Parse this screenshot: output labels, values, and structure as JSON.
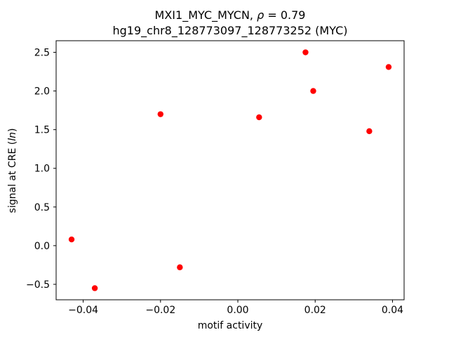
{
  "figure": {
    "background": "#ffffff"
  },
  "chart_data": {
    "type": "scatter",
    "title_line1": {
      "prefix": "MXI1_MYC_MYCN, ",
      "rho": "ρ",
      "suffix": " = 0.79"
    },
    "title_line2": "hg19_chr8_128773097_128773252 (MYC)",
    "xlabel": "motif activity",
    "ylabel": {
      "prefix": "signal at CRE (",
      "italic": "ln",
      "suffix": ")"
    },
    "marker_color": "#ff0000",
    "marker_shape": "circle",
    "x": [
      -0.043,
      -0.037,
      -0.02,
      -0.015,
      0.0055,
      0.0175,
      0.0195,
      0.034,
      0.039
    ],
    "y": [
      0.08,
      -0.55,
      1.7,
      -0.28,
      1.66,
      2.5,
      2.0,
      1.48,
      2.31
    ],
    "xlim": [
      -0.047,
      0.043
    ],
    "ylim": [
      -0.7,
      2.65
    ],
    "xticks": {
      "values": [
        -0.04,
        -0.02,
        0.0,
        0.02,
        0.04
      ],
      "labels": [
        "−0.04",
        "−0.02",
        "0.00",
        "0.02",
        "0.04"
      ]
    },
    "yticks": {
      "values": [
        -0.5,
        0.0,
        0.5,
        1.0,
        1.5,
        2.0,
        2.5
      ],
      "labels": [
        "−0.5",
        "0.0",
        "0.5",
        "1.0",
        "1.5",
        "2.0",
        "2.5"
      ]
    },
    "grid": false,
    "legend": null
  }
}
